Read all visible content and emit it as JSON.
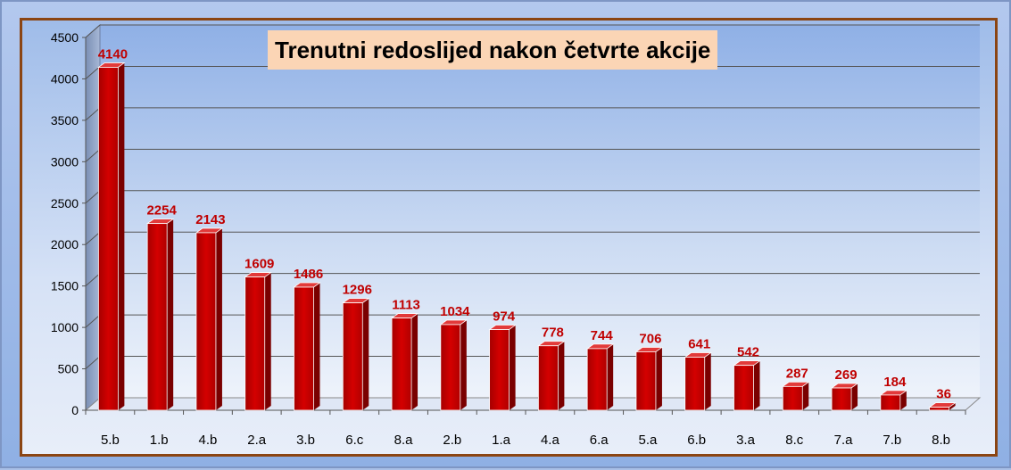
{
  "chart_data": {
    "type": "bar",
    "title": "Trenutni redoslijed nakon četvrte akcije",
    "categories": [
      "5.b",
      "1.b",
      "4.b",
      "2.a",
      "3.b",
      "6.c",
      "8.a",
      "2.b",
      "1.a",
      "4.a",
      "6.a",
      "5.a",
      "6.b",
      "3.a",
      "8.c",
      "7.a",
      "7.b",
      "8.b"
    ],
    "values": [
      4140,
      2254,
      2143,
      1609,
      1486,
      1296,
      1113,
      1034,
      974,
      778,
      744,
      706,
      641,
      542,
      287,
      269,
      184,
      36
    ],
    "series": [
      {
        "values": [
          4140,
          2254,
          2143,
          1609,
          1486,
          1296,
          1113,
          1034,
          974,
          778,
          744,
          706,
          641,
          542,
          287,
          269,
          184,
          36
        ]
      }
    ],
    "ylim": [
      0,
      4500
    ],
    "yticks": [
      0,
      500,
      1000,
      1500,
      2000,
      2500,
      3000,
      3500,
      4000,
      4500
    ],
    "ytick_labels": [
      "0",
      "500",
      "1000",
      "1500",
      "2000",
      "2500",
      "3000",
      "3500",
      "4000",
      "4500"
    ],
    "xlabel": "",
    "ylabel": "",
    "grid": true,
    "legend": "none",
    "bar_color": "#c00000",
    "label_color": "#c00000",
    "title_background": "#fbd5b5"
  }
}
